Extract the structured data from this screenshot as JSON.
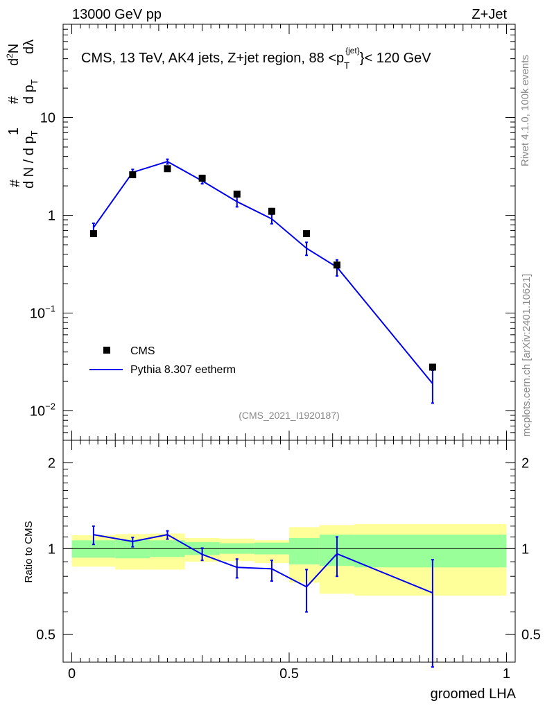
{
  "header": {
    "left": "13000 GeV pp",
    "right": "Z+Jet"
  },
  "side_labels": {
    "rivet": "Rivet 4.1.0,  100k events",
    "mcplots": "mcplots.cern.ch [arXiv:2401.10621]"
  },
  "analysis_tag": "(CMS_2021_I1920187)",
  "colors": {
    "mc": "#0000ee",
    "data": "#000000",
    "band_inner": "#99ff99",
    "band_outer": "#ffff99"
  },
  "chart_data": [
    {
      "type": "scatter",
      "panel": "main",
      "title": "CMS, 13 TeV, AK4 jets, Z+jet region, 88 <",
      "title_pt": "p",
      "title_sub": "T",
      "title_sup": "{jet}",
      "title_end": "}< 120 GeV",
      "ylabel_parts": [
        "#",
        "1",
        "d N / d p",
        "T",
        "#",
        "d p",
        "T",
        "d",
        "2",
        "N",
        "dλ"
      ],
      "yscale": "log",
      "ylim": [
        0.005,
        90
      ],
      "xlim": [
        -0.02,
        1.02
      ],
      "yticks": [
        {
          "value": 0.01,
          "base": "10",
          "exp": "−2"
        },
        {
          "value": 0.1,
          "base": "10",
          "exp": "−1"
        },
        {
          "value": 1,
          "base": "1",
          "exp": ""
        },
        {
          "value": 10,
          "base": "10",
          "exp": ""
        }
      ],
      "legend": {
        "position": "bottom-left",
        "data_label": "CMS",
        "mc_label": "Pythia 8.307 eetherm"
      },
      "data": {
        "name": "CMS",
        "x": [
          0.05,
          0.14,
          0.22,
          0.3,
          0.38,
          0.46,
          0.54,
          0.61,
          0.83
        ],
        "y": [
          0.65,
          2.6,
          3.0,
          2.4,
          1.65,
          1.1,
          0.65,
          0.31,
          0.028
        ]
      },
      "mc": {
        "name": "Pythia 8.307 eetherm",
        "x": [
          0.05,
          0.14,
          0.22,
          0.3,
          0.38,
          0.46,
          0.54,
          0.61,
          0.83
        ],
        "y": [
          0.75,
          2.75,
          3.55,
          2.25,
          1.38,
          0.92,
          0.46,
          0.295,
          0.019
        ],
        "ylo": [
          0.68,
          2.55,
          3.35,
          2.1,
          1.22,
          0.82,
          0.39,
          0.24,
          0.012
        ],
        "yhi": [
          0.83,
          2.95,
          3.75,
          2.4,
          1.55,
          1.02,
          0.53,
          0.35,
          0.026
        ]
      }
    },
    {
      "type": "line",
      "panel": "ratio",
      "ylabel": "Ratio to CMS",
      "xlabel": "groomed LHA",
      "yscale": "log",
      "ylim": [
        0.4,
        2.4
      ],
      "xlim": [
        -0.02,
        1.02
      ],
      "yticks": [
        0.5,
        1,
        2
      ],
      "xticks": [
        0,
        0.5,
        1
      ],
      "reference_line": 1,
      "bands": {
        "edges": [
          0.0,
          0.1,
          0.18,
          0.26,
          0.34,
          0.42,
          0.5,
          0.57,
          0.65,
          1.0
        ],
        "inner_lo": [
          0.93,
          0.925,
          0.935,
          0.95,
          0.96,
          0.955,
          0.88,
          0.87,
          0.86
        ],
        "inner_hi": [
          1.07,
          1.075,
          1.07,
          1.055,
          1.045,
          1.05,
          1.09,
          1.12,
          1.12
        ],
        "outer_lo": [
          0.865,
          0.845,
          0.845,
          0.9,
          0.905,
          0.89,
          0.76,
          0.695,
          0.685
        ],
        "outer_hi": [
          1.115,
          1.125,
          1.13,
          1.09,
          1.085,
          1.07,
          1.19,
          1.21,
          1.22
        ]
      },
      "mc_ratio": {
        "x": [
          0.05,
          0.14,
          0.22,
          0.3,
          0.38,
          0.46,
          0.54,
          0.61,
          0.83
        ],
        "y": [
          1.12,
          1.06,
          1.12,
          0.955,
          0.86,
          0.85,
          0.735,
          0.96,
          0.7
        ],
        "ylo": [
          1.035,
          1.015,
          1.08,
          0.91,
          0.79,
          0.77,
          0.6,
          0.8,
          0.385
        ],
        "yhi": [
          1.2,
          1.095,
          1.155,
          1.005,
          0.92,
          0.91,
          0.845,
          1.1,
          0.915
        ]
      }
    }
  ]
}
